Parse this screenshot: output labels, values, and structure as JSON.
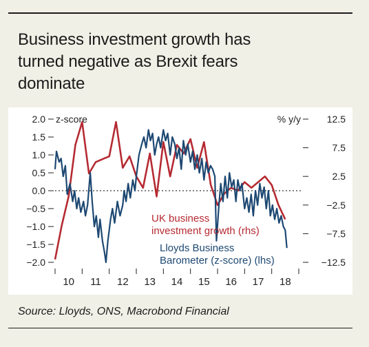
{
  "title": "Business investment growth has\nturned negative as Brexit fears\ndominate",
  "source": "Source: Lloyds, ONS, Macrobond Financial",
  "chart_data": {
    "type": "line",
    "left_axis": {
      "label": "z-score",
      "range": [
        -2.0,
        2.0
      ],
      "ticks": [
        "2.0",
        "1.5",
        "1.0",
        "0.5",
        "0.0",
        "-0.5",
        "-1.0",
        "-1.5",
        "-2.0"
      ]
    },
    "right_axis": {
      "label": "% y/y",
      "range": [
        -12.5,
        12.5
      ],
      "ticks": [
        "12.5",
        "7.5",
        "2.5",
        "-2.5",
        "-7.5",
        "-12.5"
      ]
    },
    "x_axis": {
      "range": [
        2010,
        2019
      ],
      "ticks": [
        "10",
        "11",
        "12",
        "13",
        "14",
        "15",
        "16",
        "17",
        "18"
      ]
    },
    "zero_line": true,
    "series": [
      {
        "name": "UK business investment growth (rhs)",
        "axis": "right",
        "color": "#b52a32",
        "points": [
          [
            2010.0,
            -12.0
          ],
          [
            2010.25,
            -6.0
          ],
          [
            2010.5,
            -1.0
          ],
          [
            2010.75,
            8.0
          ],
          [
            2011.0,
            12.0
          ],
          [
            2011.25,
            3.0
          ],
          [
            2011.5,
            5.0
          ],
          [
            2011.75,
            5.5
          ],
          [
            2012.0,
            6.0
          ],
          [
            2012.25,
            12.0
          ],
          [
            2012.5,
            4.0
          ],
          [
            2012.75,
            6.0
          ],
          [
            2013.0,
            2.5
          ],
          [
            2013.25,
            0.5
          ],
          [
            2013.5,
            6.5
          ],
          [
            2013.75,
            -1.0
          ],
          [
            2014.0,
            8.5
          ],
          [
            2014.25,
            2.5
          ],
          [
            2014.5,
            8.0
          ],
          [
            2014.75,
            6.5
          ],
          [
            2015.0,
            9.0
          ],
          [
            2015.25,
            4.0
          ],
          [
            2015.5,
            8.5
          ],
          [
            2015.75,
            1.0
          ],
          [
            2016.0,
            -2.5
          ],
          [
            2016.25,
            -0.5
          ],
          [
            2016.5,
            0.5
          ],
          [
            2016.75,
            0.0
          ],
          [
            2017.0,
            1.5
          ],
          [
            2017.25,
            0.5
          ],
          [
            2017.5,
            1.5
          ],
          [
            2017.75,
            2.5
          ],
          [
            2018.0,
            1.0
          ],
          [
            2018.25,
            -2.5
          ],
          [
            2018.5,
            -5.0
          ]
        ]
      },
      {
        "name": "Lloyds Business Barometer (z-score) (lhs)",
        "axis": "left",
        "color": "#1d4872",
        "points": [
          [
            2010.0,
            0.6
          ],
          [
            2010.05,
            1.1
          ],
          [
            2010.15,
            0.8
          ],
          [
            2010.22,
            0.9
          ],
          [
            2010.3,
            0.4
          ],
          [
            2010.38,
            0.7
          ],
          [
            2010.45,
            -0.1
          ],
          [
            2010.55,
            0.2
          ],
          [
            2010.65,
            -0.3
          ],
          [
            2010.72,
            0.0
          ],
          [
            2010.8,
            -0.5
          ],
          [
            2010.87,
            -0.2
          ],
          [
            2010.95,
            -0.6
          ],
          [
            2011.05,
            -0.3
          ],
          [
            2011.12,
            -0.7
          ],
          [
            2011.2,
            -0.4
          ],
          [
            2011.3,
            0.5
          ],
          [
            2011.37,
            -0.3
          ],
          [
            2011.45,
            -1.0
          ],
          [
            2011.52,
            -0.7
          ],
          [
            2011.6,
            -1.3
          ],
          [
            2011.66,
            -0.8
          ],
          [
            2011.75,
            -1.4
          ],
          [
            2011.82,
            -1.7
          ],
          [
            2011.88,
            -2.0
          ],
          [
            2011.95,
            -1.4
          ],
          [
            2012.05,
            -0.8
          ],
          [
            2012.12,
            -0.5
          ],
          [
            2012.2,
            -0.9
          ],
          [
            2012.3,
            -0.3
          ],
          [
            2012.4,
            -0.7
          ],
          [
            2012.5,
            -0.4
          ],
          [
            2012.55,
            0.0
          ],
          [
            2012.62,
            -0.3
          ],
          [
            2012.7,
            0.2
          ],
          [
            2012.78,
            -0.2
          ],
          [
            2012.87,
            0.3
          ],
          [
            2012.95,
            0.0
          ],
          [
            2013.0,
            0.4
          ],
          [
            2013.1,
            1.0
          ],
          [
            2013.2,
            1.3
          ],
          [
            2013.28,
            1.5
          ],
          [
            2013.36,
            1.2
          ],
          [
            2013.45,
            1.7
          ],
          [
            2013.52,
            1.4
          ],
          [
            2013.6,
            1.6
          ],
          [
            2013.68,
            1.0
          ],
          [
            2013.75,
            1.3
          ],
          [
            2013.82,
            1.5
          ],
          [
            2013.9,
            1.2
          ],
          [
            2014.0,
            1.7
          ],
          [
            2014.08,
            1.4
          ],
          [
            2014.16,
            1.6
          ],
          [
            2014.25,
            1.0
          ],
          [
            2014.33,
            1.5
          ],
          [
            2014.42,
            1.3
          ],
          [
            2014.5,
            0.9
          ],
          [
            2014.58,
            1.2
          ],
          [
            2014.66,
            0.6
          ],
          [
            2014.74,
            1.4
          ],
          [
            2014.82,
            1.0
          ],
          [
            2014.9,
            1.3
          ],
          [
            2015.0,
            0.8
          ],
          [
            2015.08,
            1.1
          ],
          [
            2015.16,
            0.6
          ],
          [
            2015.25,
            1.0
          ],
          [
            2015.33,
            0.5
          ],
          [
            2015.42,
            0.9
          ],
          [
            2015.5,
            0.3
          ],
          [
            2015.58,
            0.8
          ],
          [
            2015.66,
            0.5
          ],
          [
            2015.74,
            0.7
          ],
          [
            2015.82,
            0.6
          ],
          [
            2015.9,
            0.4
          ],
          [
            2015.96,
            -1.4
          ],
          [
            2016.05,
            -0.4
          ],
          [
            2016.12,
            0.2
          ],
          [
            2016.2,
            -0.3
          ],
          [
            2016.28,
            0.4
          ],
          [
            2016.36,
            -0.2
          ],
          [
            2016.44,
            0.5
          ],
          [
            2016.52,
            0.1
          ],
          [
            2016.6,
            0.3
          ],
          [
            2016.68,
            -0.3
          ],
          [
            2016.75,
            0.3
          ],
          [
            2016.83,
            0.0
          ],
          [
            2016.9,
            0.2
          ],
          [
            2017.0,
            -0.5
          ],
          [
            2017.08,
            -0.2
          ],
          [
            2017.16,
            -0.6
          ],
          [
            2017.24,
            -0.1
          ],
          [
            2017.32,
            -0.7
          ],
          [
            2017.4,
            0.0
          ],
          [
            2017.48,
            -0.4
          ],
          [
            2017.56,
            0.2
          ],
          [
            2017.64,
            -0.2
          ],
          [
            2017.72,
            0.1
          ],
          [
            2017.8,
            -0.5
          ],
          [
            2017.88,
            0.0
          ],
          [
            2017.95,
            -0.7
          ],
          [
            2018.03,
            -0.4
          ],
          [
            2018.11,
            -0.8
          ],
          [
            2018.19,
            -0.5
          ],
          [
            2018.27,
            -0.9
          ],
          [
            2018.35,
            -0.7
          ],
          [
            2018.43,
            -1.0
          ],
          [
            2018.5,
            -1.1
          ],
          [
            2018.56,
            -1.6
          ]
        ]
      }
    ],
    "annotations": [
      {
        "text": "UK business\ninvestment growth (rhs)",
        "color": "#b52a32"
      },
      {
        "text": "Lloyds Business\nBarometer (z-score) (lhs)",
        "color": "#1d4872"
      }
    ]
  }
}
